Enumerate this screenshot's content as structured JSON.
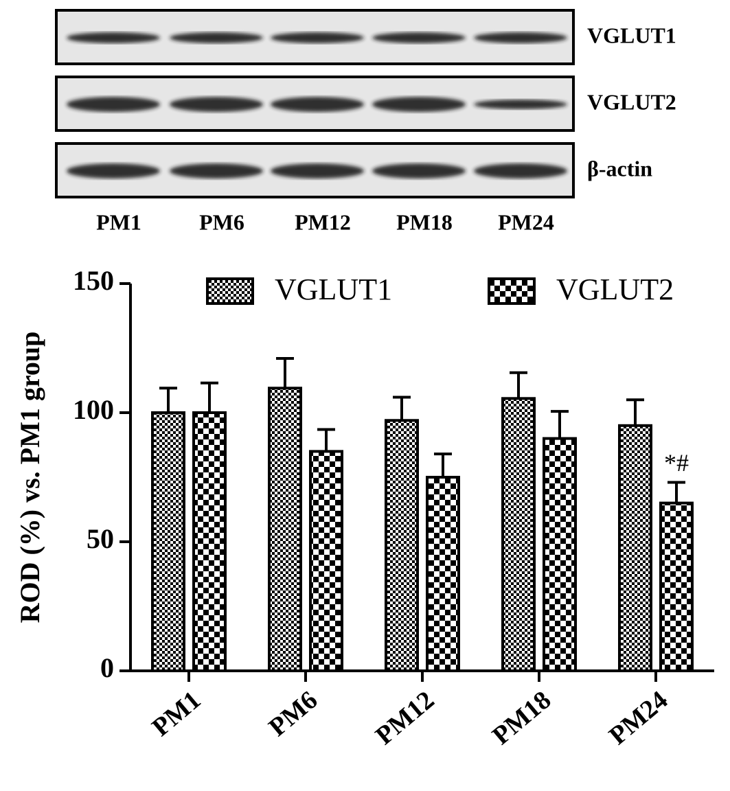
{
  "blot": {
    "rows": [
      "VGLUT1",
      "VGLUT2",
      "β-actin"
    ],
    "lanes": [
      "PM1",
      "PM6",
      "PM12",
      "PM18",
      "PM24"
    ]
  },
  "chart_data": {
    "type": "bar",
    "y_label": "ROD (%) vs. PM1 group",
    "categories": [
      "PM1",
      "PM6",
      "PM12",
      "PM18",
      "PM24"
    ],
    "series": [
      {
        "name": "VGLUT1",
        "color": "#000000",
        "pattern": "fine",
        "values": [
          100,
          109.5,
          97,
          105.5,
          95
        ],
        "errors": [
          9.5,
          11.5,
          9,
          10,
          10
        ]
      },
      {
        "name": "VGLUT2",
        "color": "#000000",
        "pattern": "coarse",
        "values": [
          100,
          85,
          75,
          90,
          65
        ],
        "errors": [
          11.5,
          8.5,
          9,
          10.5,
          8
        ]
      }
    ],
    "annotation": "*#",
    "ylim": [
      0,
      150
    ],
    "yticks": [
      0,
      50,
      100,
      150
    ],
    "grid": false,
    "legend": "top"
  }
}
